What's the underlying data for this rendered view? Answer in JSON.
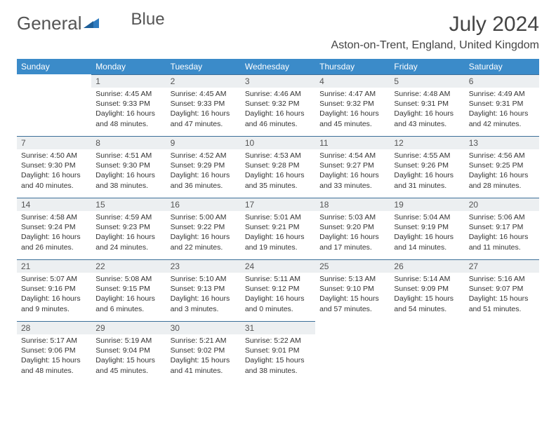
{
  "logo": {
    "text_left": "General",
    "text_right": "Blue",
    "icon_color": "#3b8bc9"
  },
  "title": "July 2024",
  "location": "Aston-on-Trent, England, United Kingdom",
  "colors": {
    "header_bg": "#3b8bc9",
    "daynum_bg": "#eceff1",
    "rule": "#3b6f99"
  },
  "day_headers": [
    "Sunday",
    "Monday",
    "Tuesday",
    "Wednesday",
    "Thursday",
    "Friday",
    "Saturday"
  ],
  "weeks": [
    [
      null,
      {
        "n": "1",
        "sr": "Sunrise: 4:45 AM",
        "ss": "Sunset: 9:33 PM",
        "d1": "Daylight: 16 hours",
        "d2": "and 48 minutes."
      },
      {
        "n": "2",
        "sr": "Sunrise: 4:45 AM",
        "ss": "Sunset: 9:33 PM",
        "d1": "Daylight: 16 hours",
        "d2": "and 47 minutes."
      },
      {
        "n": "3",
        "sr": "Sunrise: 4:46 AM",
        "ss": "Sunset: 9:32 PM",
        "d1": "Daylight: 16 hours",
        "d2": "and 46 minutes."
      },
      {
        "n": "4",
        "sr": "Sunrise: 4:47 AM",
        "ss": "Sunset: 9:32 PM",
        "d1": "Daylight: 16 hours",
        "d2": "and 45 minutes."
      },
      {
        "n": "5",
        "sr": "Sunrise: 4:48 AM",
        "ss": "Sunset: 9:31 PM",
        "d1": "Daylight: 16 hours",
        "d2": "and 43 minutes."
      },
      {
        "n": "6",
        "sr": "Sunrise: 4:49 AM",
        "ss": "Sunset: 9:31 PM",
        "d1": "Daylight: 16 hours",
        "d2": "and 42 minutes."
      }
    ],
    [
      {
        "n": "7",
        "sr": "Sunrise: 4:50 AM",
        "ss": "Sunset: 9:30 PM",
        "d1": "Daylight: 16 hours",
        "d2": "and 40 minutes."
      },
      {
        "n": "8",
        "sr": "Sunrise: 4:51 AM",
        "ss": "Sunset: 9:30 PM",
        "d1": "Daylight: 16 hours",
        "d2": "and 38 minutes."
      },
      {
        "n": "9",
        "sr": "Sunrise: 4:52 AM",
        "ss": "Sunset: 9:29 PM",
        "d1": "Daylight: 16 hours",
        "d2": "and 36 minutes."
      },
      {
        "n": "10",
        "sr": "Sunrise: 4:53 AM",
        "ss": "Sunset: 9:28 PM",
        "d1": "Daylight: 16 hours",
        "d2": "and 35 minutes."
      },
      {
        "n": "11",
        "sr": "Sunrise: 4:54 AM",
        "ss": "Sunset: 9:27 PM",
        "d1": "Daylight: 16 hours",
        "d2": "and 33 minutes."
      },
      {
        "n": "12",
        "sr": "Sunrise: 4:55 AM",
        "ss": "Sunset: 9:26 PM",
        "d1": "Daylight: 16 hours",
        "d2": "and 31 minutes."
      },
      {
        "n": "13",
        "sr": "Sunrise: 4:56 AM",
        "ss": "Sunset: 9:25 PM",
        "d1": "Daylight: 16 hours",
        "d2": "and 28 minutes."
      }
    ],
    [
      {
        "n": "14",
        "sr": "Sunrise: 4:58 AM",
        "ss": "Sunset: 9:24 PM",
        "d1": "Daylight: 16 hours",
        "d2": "and 26 minutes."
      },
      {
        "n": "15",
        "sr": "Sunrise: 4:59 AM",
        "ss": "Sunset: 9:23 PM",
        "d1": "Daylight: 16 hours",
        "d2": "and 24 minutes."
      },
      {
        "n": "16",
        "sr": "Sunrise: 5:00 AM",
        "ss": "Sunset: 9:22 PM",
        "d1": "Daylight: 16 hours",
        "d2": "and 22 minutes."
      },
      {
        "n": "17",
        "sr": "Sunrise: 5:01 AM",
        "ss": "Sunset: 9:21 PM",
        "d1": "Daylight: 16 hours",
        "d2": "and 19 minutes."
      },
      {
        "n": "18",
        "sr": "Sunrise: 5:03 AM",
        "ss": "Sunset: 9:20 PM",
        "d1": "Daylight: 16 hours",
        "d2": "and 17 minutes."
      },
      {
        "n": "19",
        "sr": "Sunrise: 5:04 AM",
        "ss": "Sunset: 9:19 PM",
        "d1": "Daylight: 16 hours",
        "d2": "and 14 minutes."
      },
      {
        "n": "20",
        "sr": "Sunrise: 5:06 AM",
        "ss": "Sunset: 9:17 PM",
        "d1": "Daylight: 16 hours",
        "d2": "and 11 minutes."
      }
    ],
    [
      {
        "n": "21",
        "sr": "Sunrise: 5:07 AM",
        "ss": "Sunset: 9:16 PM",
        "d1": "Daylight: 16 hours",
        "d2": "and 9 minutes."
      },
      {
        "n": "22",
        "sr": "Sunrise: 5:08 AM",
        "ss": "Sunset: 9:15 PM",
        "d1": "Daylight: 16 hours",
        "d2": "and 6 minutes."
      },
      {
        "n": "23",
        "sr": "Sunrise: 5:10 AM",
        "ss": "Sunset: 9:13 PM",
        "d1": "Daylight: 16 hours",
        "d2": "and 3 minutes."
      },
      {
        "n": "24",
        "sr": "Sunrise: 5:11 AM",
        "ss": "Sunset: 9:12 PM",
        "d1": "Daylight: 16 hours",
        "d2": "and 0 minutes."
      },
      {
        "n": "25",
        "sr": "Sunrise: 5:13 AM",
        "ss": "Sunset: 9:10 PM",
        "d1": "Daylight: 15 hours",
        "d2": "and 57 minutes."
      },
      {
        "n": "26",
        "sr": "Sunrise: 5:14 AM",
        "ss": "Sunset: 9:09 PM",
        "d1": "Daylight: 15 hours",
        "d2": "and 54 minutes."
      },
      {
        "n": "27",
        "sr": "Sunrise: 5:16 AM",
        "ss": "Sunset: 9:07 PM",
        "d1": "Daylight: 15 hours",
        "d2": "and 51 minutes."
      }
    ],
    [
      {
        "n": "28",
        "sr": "Sunrise: 5:17 AM",
        "ss": "Sunset: 9:06 PM",
        "d1": "Daylight: 15 hours",
        "d2": "and 48 minutes."
      },
      {
        "n": "29",
        "sr": "Sunrise: 5:19 AM",
        "ss": "Sunset: 9:04 PM",
        "d1": "Daylight: 15 hours",
        "d2": "and 45 minutes."
      },
      {
        "n": "30",
        "sr": "Sunrise: 5:21 AM",
        "ss": "Sunset: 9:02 PM",
        "d1": "Daylight: 15 hours",
        "d2": "and 41 minutes."
      },
      {
        "n": "31",
        "sr": "Sunrise: 5:22 AM",
        "ss": "Sunset: 9:01 PM",
        "d1": "Daylight: 15 hours",
        "d2": "and 38 minutes."
      },
      null,
      null,
      null
    ]
  ]
}
